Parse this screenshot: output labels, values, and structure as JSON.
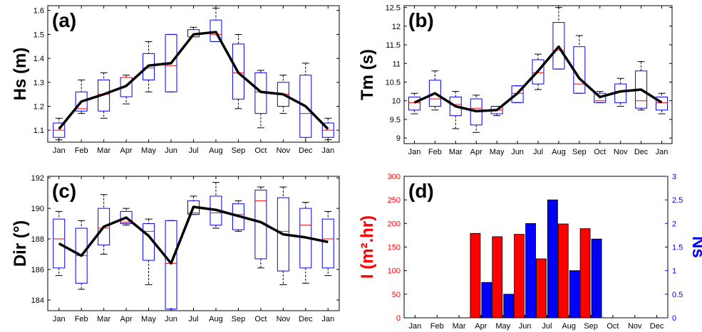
{
  "months": [
    "Jan",
    "Feb",
    "Mar",
    "Apr",
    "May",
    "Jun",
    "Jul",
    "Aug",
    "Sep",
    "Oct",
    "Nov",
    "Dec",
    "Jan"
  ],
  "colors": {
    "axis": "#000000",
    "box": "#0000ff",
    "median": "#ff0000",
    "mean_line": "#000000",
    "bar_I": "#ff0000",
    "bar_Ns": "#0000ff"
  },
  "chart_data": [
    {
      "type": "box",
      "panel_label": "(a)",
      "ylabel": "Hs (m)",
      "ylim": [
        1.05,
        1.62
      ],
      "yticks": [
        1.1,
        1.2,
        1.3,
        1.4,
        1.5,
        1.6
      ],
      "ytick_labels": [
        "1.1",
        "1.2",
        "1.3",
        "1.4",
        "1.5",
        "1.6"
      ],
      "categories": [
        "Jan",
        "Feb",
        "Mar",
        "Apr",
        "May",
        "Jun",
        "Jul",
        "Aug",
        "Sep",
        "Oct",
        "Nov",
        "Dec",
        "Jan"
      ],
      "boxes": [
        {
          "min": 1.06,
          "q1": 1.07,
          "median": 1.1,
          "q3": 1.13,
          "max": 1.15
        },
        {
          "min": 1.17,
          "q1": 1.18,
          "median": 1.19,
          "q3": 1.26,
          "max": 1.31
        },
        {
          "min": 1.15,
          "q1": 1.18,
          "median": 1.25,
          "q3": 1.31,
          "max": 1.34
        },
        {
          "min": 1.21,
          "q1": 1.24,
          "median": 1.32,
          "q3": 1.32,
          "max": 1.33
        },
        {
          "min": 1.26,
          "q1": 1.31,
          "median": 1.36,
          "q3": 1.42,
          "max": 1.47
        },
        {
          "min": 1.26,
          "q1": 1.26,
          "median": 1.37,
          "q3": 1.5,
          "max": 1.5
        },
        {
          "min": 1.49,
          "q1": 1.49,
          "median": 1.49,
          "q3": 1.52,
          "max": 1.53
        },
        {
          "min": 1.47,
          "q1": 1.47,
          "median": 1.5,
          "q3": 1.56,
          "max": 1.61
        },
        {
          "min": 1.19,
          "q1": 1.23,
          "median": 1.34,
          "q3": 1.46,
          "max": 1.5
        },
        {
          "min": 1.11,
          "q1": 1.17,
          "median": 1.26,
          "q3": 1.34,
          "max": 1.35
        },
        {
          "min": 1.17,
          "q1": 1.2,
          "median": 1.25,
          "q3": 1.3,
          "max": 1.33
        },
        {
          "min": 1.05,
          "q1": 1.07,
          "median": 1.17,
          "q3": 1.33,
          "max": 1.38
        },
        {
          "min": 1.06,
          "q1": 1.07,
          "median": 1.1,
          "q3": 1.13,
          "max": 1.15
        }
      ],
      "mean_line": [
        1.105,
        1.22,
        1.25,
        1.285,
        1.37,
        1.38,
        1.5,
        1.51,
        1.34,
        1.26,
        1.25,
        1.2,
        1.105
      ]
    },
    {
      "type": "box",
      "panel_label": "(b)",
      "ylabel": "Tm (s)",
      "ylim": [
        8.85,
        12.55
      ],
      "yticks": [
        9,
        9.5,
        10,
        10.5,
        11,
        11.5,
        12,
        12.5
      ],
      "ytick_labels": [
        "9",
        "9.5",
        "10",
        "10.5",
        "11",
        "11.5",
        "12",
        "12.5"
      ],
      "categories": [
        "Jan",
        "Feb",
        "Mar",
        "Apr",
        "May",
        "Jun",
        "Jul",
        "Aug",
        "Sep",
        "Oct",
        "Nov",
        "Dec",
        "Jan"
      ],
      "boxes": [
        {
          "min": 9.65,
          "q1": 9.75,
          "median": 9.95,
          "q3": 10.1,
          "max": 10.2
        },
        {
          "min": 9.75,
          "q1": 9.85,
          "median": 10.05,
          "q3": 10.55,
          "max": 10.8
        },
        {
          "min": 9.25,
          "q1": 9.6,
          "median": 9.9,
          "q3": 10.1,
          "max": 10.25
        },
        {
          "min": 9.15,
          "q1": 9.35,
          "median": 9.8,
          "q3": 10.05,
          "max": 10.15
        },
        {
          "min": 9.6,
          "q1": 9.65,
          "median": 9.75,
          "q3": 9.85,
          "max": 9.85
        },
        {
          "min": 9.95,
          "q1": 9.95,
          "median": 10.2,
          "q3": 10.4,
          "max": 10.4
        },
        {
          "min": 10.3,
          "q1": 10.45,
          "median": 10.75,
          "q3": 11.1,
          "max": 11.25
        },
        {
          "min": 10.85,
          "q1": 10.85,
          "median": 11.35,
          "q3": 12.1,
          "max": 12.5
        },
        {
          "min": 10.2,
          "q1": 10.2,
          "median": 10.45,
          "q3": 11.45,
          "max": 11.75
        },
        {
          "min": 9.95,
          "q1": 9.95,
          "median": 10.0,
          "q3": 10.2,
          "max": 10.25
        },
        {
          "min": 9.85,
          "q1": 9.95,
          "median": 10.25,
          "q3": 10.45,
          "max": 10.6
        },
        {
          "min": 9.75,
          "q1": 9.8,
          "median": 10.0,
          "q3": 10.8,
          "max": 11.05
        },
        {
          "min": 9.65,
          "q1": 9.75,
          "median": 9.95,
          "q3": 10.1,
          "max": 10.2
        }
      ],
      "mean_line": [
        9.95,
        10.2,
        9.85,
        9.72,
        9.75,
        10.2,
        10.8,
        11.45,
        10.6,
        10.1,
        10.25,
        10.3,
        9.95
      ]
    },
    {
      "type": "box",
      "panel_label": "(c)",
      "ylabel": "Dir (°)",
      "ylim": [
        183.3,
        192.1
      ],
      "yticks": [
        184,
        186,
        188,
        190,
        192
      ],
      "ytick_labels": [
        "184",
        "186",
        "188",
        "190",
        "192"
      ],
      "categories": [
        "Jan",
        "Feb",
        "Mar",
        "Apr",
        "May",
        "Jun",
        "Jul",
        "Aug",
        "Sep",
        "Oct",
        "Nov",
        "Dec",
        "Jan"
      ],
      "boxes": [
        {
          "min": 185.6,
          "q1": 186.1,
          "median": 188.0,
          "q3": 189.3,
          "max": 189.8
        },
        {
          "min": 184.7,
          "q1": 185.1,
          "median": 186.9,
          "q3": 188.7,
          "max": 189.2
        },
        {
          "min": 187.0,
          "q1": 187.6,
          "median": 188.7,
          "q3": 190.0,
          "max": 190.9
        },
        {
          "min": 188.9,
          "q1": 189.0,
          "median": 189.1,
          "q3": 189.8,
          "max": 190.0
        },
        {
          "min": 185.0,
          "q1": 186.6,
          "median": 188.5,
          "q3": 189.0,
          "max": 189.3
        },
        {
          "min": 183.4,
          "q1": 183.4,
          "median": 186.4,
          "q3": 189.2,
          "max": 189.2
        },
        {
          "min": 189.6,
          "q1": 189.6,
          "median": 189.7,
          "q3": 190.5,
          "max": 190.8
        },
        {
          "min": 188.7,
          "q1": 188.9,
          "median": 189.7,
          "q3": 190.8,
          "max": 191.7
        },
        {
          "min": 188.5,
          "q1": 188.6,
          "median": 189.6,
          "q3": 190.3,
          "max": 190.5
        },
        {
          "min": 186.1,
          "q1": 186.7,
          "median": 190.5,
          "q3": 191.2,
          "max": 191.4
        },
        {
          "min": 185.0,
          "q1": 185.9,
          "median": 188.5,
          "q3": 190.7,
          "max": 191.4
        },
        {
          "min": 185.1,
          "q1": 186.1,
          "median": 188.9,
          "q3": 190.0,
          "max": 190.4
        },
        {
          "min": 185.6,
          "q1": 186.1,
          "median": 188.0,
          "q3": 189.3,
          "max": 189.8
        }
      ],
      "mean_line": [
        187.7,
        186.9,
        188.8,
        189.4,
        188.2,
        186.4,
        190.1,
        189.9,
        189.5,
        189.1,
        188.3,
        188.1,
        187.8
      ]
    },
    {
      "type": "bar",
      "panel_label": "(d)",
      "ylabel": "I (m².hr)",
      "y2label": "Ns",
      "categories": [
        "Jan",
        "Feb",
        "Mar",
        "Apr",
        "May",
        "Jun",
        "Jul",
        "Aug",
        "Sep",
        "Oct",
        "Nov",
        "Dec"
      ],
      "ylim": [
        0,
        300
      ],
      "yticks": [
        0,
        50,
        100,
        150,
        200,
        250,
        300
      ],
      "ytick_labels": [
        "0",
        "50",
        "100",
        "150",
        "200",
        "250",
        "300"
      ],
      "y2lim": [
        0,
        3
      ],
      "y2ticks": [
        0,
        0.5,
        1,
        1.5,
        2,
        2.5,
        3
      ],
      "y2tick_labels": [
        "0",
        "0.5",
        "1",
        "1.5",
        "2",
        "2.5",
        "3"
      ],
      "series": [
        {
          "name": "I",
          "axis": "left",
          "values": [
            0,
            0,
            0,
            179,
            172,
            177,
            125,
            199,
            189,
            0,
            0,
            0
          ]
        },
        {
          "name": "Ns",
          "axis": "right",
          "values": [
            0,
            0,
            0,
            0.75,
            0.5,
            2.0,
            2.5,
            1.0,
            1.67,
            0,
            0,
            0
          ]
        }
      ]
    }
  ]
}
